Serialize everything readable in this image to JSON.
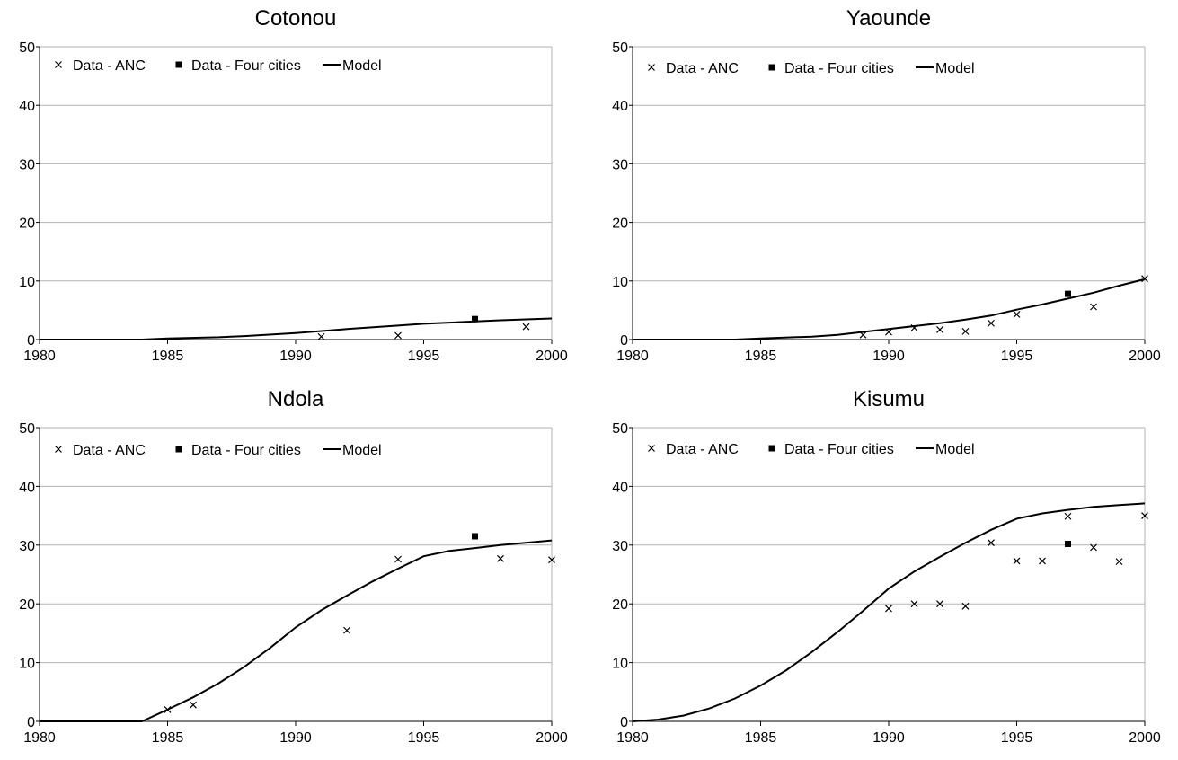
{
  "chart_data": [
    {
      "type": "line",
      "title": "Cotonou",
      "xlim": [
        1980,
        2000
      ],
      "ylim": [
        0,
        50
      ],
      "xticks": [
        1980,
        1985,
        1990,
        1995,
        2000
      ],
      "yticks": [
        0,
        10,
        20,
        30,
        40,
        50
      ],
      "grid": "horizontal",
      "legend_position": "top-left",
      "legend": {
        "anc": "Data - ANC",
        "four": "Data - Four cities",
        "model": "Model"
      },
      "series": [
        {
          "name": "Model",
          "kind": "line",
          "x": [
            1980,
            1984,
            1985,
            1987,
            1988,
            1990,
            1992,
            1994,
            1995,
            1996,
            1997,
            1998,
            2000
          ],
          "y": [
            0,
            0,
            0.2,
            0.4,
            0.6,
            1.1,
            1.8,
            2.4,
            2.7,
            2.9,
            3.1,
            3.3,
            3.6
          ]
        },
        {
          "name": "Data - ANC",
          "kind": "x-marker",
          "x": [
            1991,
            1994,
            1999
          ],
          "y": [
            0.5,
            0.7,
            2.2
          ]
        },
        {
          "name": "Data - Four cities",
          "kind": "square-marker",
          "x": [
            1997
          ],
          "y": [
            3.5
          ]
        }
      ]
    },
    {
      "type": "line",
      "title": "Yaounde",
      "xlim": [
        1980,
        2000
      ],
      "ylim": [
        0,
        50
      ],
      "xticks": [
        1980,
        1985,
        1990,
        1995,
        2000
      ],
      "yticks": [
        0,
        10,
        20,
        30,
        40,
        50
      ],
      "grid": "horizontal",
      "legend_position": "top-left",
      "legend": {
        "anc": "Data - ANC",
        "four": "Data - Four cities",
        "model": "Model"
      },
      "series": [
        {
          "name": "Model",
          "kind": "line",
          "x": [
            1980,
            1984,
            1985,
            1987,
            1988,
            1989,
            1990,
            1991,
            1992,
            1993,
            1994,
            1995,
            1996,
            1997,
            1998,
            1999,
            2000
          ],
          "y": [
            0,
            0,
            0.2,
            0.5,
            0.8,
            1.3,
            1.8,
            2.3,
            2.8,
            3.4,
            4.1,
            5.1,
            6.0,
            7.0,
            8.0,
            9.2,
            10.3
          ]
        },
        {
          "name": "Data - ANC",
          "kind": "x-marker",
          "x": [
            1989,
            1990,
            1991,
            1992,
            1993,
            1994,
            1995,
            1998,
            2000
          ],
          "y": [
            0.8,
            1.3,
            2.0,
            1.7,
            1.4,
            2.8,
            4.3,
            5.6,
            10.4
          ]
        },
        {
          "name": "Data - Four cities",
          "kind": "square-marker",
          "x": [
            1997
          ],
          "y": [
            7.8
          ]
        }
      ]
    },
    {
      "type": "line",
      "title": "Ndola",
      "xlim": [
        1980,
        2000
      ],
      "ylim": [
        0,
        50
      ],
      "xticks": [
        1980,
        1985,
        1990,
        1995,
        2000
      ],
      "yticks": [
        0,
        10,
        20,
        30,
        40,
        50
      ],
      "grid": "horizontal",
      "legend_position": "top-left",
      "legend": {
        "anc": "Data - ANC",
        "four": "Data - Four cities",
        "model": "Model"
      },
      "series": [
        {
          "name": "Model",
          "kind": "line",
          "x": [
            1980,
            1984,
            1985,
            1986,
            1987,
            1988,
            1989,
            1990,
            1991,
            1992,
            1993,
            1994,
            1995,
            1996,
            1997,
            1998,
            2000
          ],
          "y": [
            0,
            0,
            2.0,
            4.1,
            6.5,
            9.3,
            12.5,
            16.0,
            18.9,
            21.4,
            23.8,
            26.0,
            28.1,
            29.0,
            29.5,
            30.0,
            30.8
          ]
        },
        {
          "name": "Data - ANC",
          "kind": "x-marker",
          "x": [
            1985,
            1986,
            1992,
            1994,
            1998,
            2000
          ],
          "y": [
            2.0,
            2.8,
            15.5,
            27.6,
            27.7,
            27.5
          ]
        },
        {
          "name": "Data - Four cities",
          "kind": "square-marker",
          "x": [
            1997
          ],
          "y": [
            31.5
          ]
        }
      ]
    },
    {
      "type": "line",
      "title": "Kisumu",
      "xlim": [
        1980,
        2000
      ],
      "ylim": [
        0,
        50
      ],
      "xticks": [
        1980,
        1985,
        1990,
        1995,
        2000
      ],
      "yticks": [
        0,
        10,
        20,
        30,
        40,
        50
      ],
      "grid": "horizontal",
      "legend_position": "top-left",
      "legend": {
        "anc": "Data - ANC",
        "four": "Data - Four cities",
        "model": "Model"
      },
      "series": [
        {
          "name": "Model",
          "kind": "line",
          "x": [
            1980,
            1981,
            1982,
            1983,
            1984,
            1985,
            1986,
            1987,
            1988,
            1989,
            1990,
            1991,
            1992,
            1993,
            1994,
            1995,
            1996,
            1997,
            1998,
            1999,
            2000
          ],
          "y": [
            0,
            0.3,
            1.0,
            2.2,
            3.9,
            6.1,
            8.7,
            11.8,
            15.2,
            18.8,
            22.6,
            25.5,
            28.0,
            30.4,
            32.6,
            34.5,
            35.4,
            36.0,
            36.5,
            36.8,
            37.1
          ]
        },
        {
          "name": "Data - ANC",
          "kind": "x-marker",
          "x": [
            1990,
            1991,
            1992,
            1993,
            1994,
            1995,
            1996,
            1997,
            1998,
            1999,
            2000
          ],
          "y": [
            19.2,
            20.0,
            20.0,
            19.6,
            30.4,
            27.3,
            27.3,
            34.9,
            29.6,
            27.2,
            35.0
          ]
        },
        {
          "name": "Data - Four cities",
          "kind": "square-marker",
          "x": [
            1997
          ],
          "y": [
            30.2
          ]
        }
      ]
    }
  ]
}
